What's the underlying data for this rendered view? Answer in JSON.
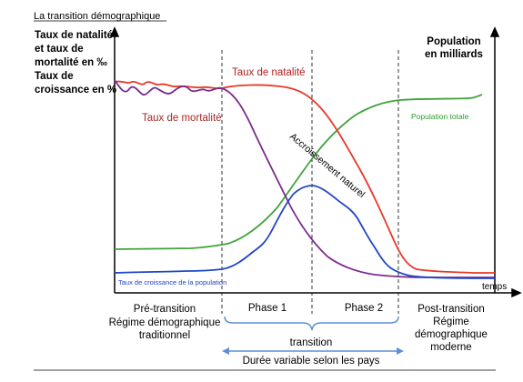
{
  "header": {
    "title": "La transition démographique"
  },
  "axes": {
    "left_label": [
      "Taux de natalité",
      "et taux de",
      "mortalité en ‰",
      "Taux de",
      "croissance en %"
    ],
    "right_label": [
      "Population",
      "en milliards"
    ],
    "x_label": "temps"
  },
  "curves": {
    "birth_rate_label": "Taux de natalité",
    "death_rate_label": "Taux de mortalité",
    "natural_increase_label": "Accroissement naturel",
    "population_label": "Population totale",
    "growth_rate_label": "Taux de croissance de la population"
  },
  "phases": {
    "pre": [
      "Pré-transition",
      "Régime démographique",
      "traditionnel"
    ],
    "phase1": "Phase 1",
    "phase2": "Phase 2",
    "post": [
      "Post-transition",
      "Régime",
      "démographique",
      "moderne"
    ],
    "transition": "transition",
    "duration": "Durée variable selon les pays"
  },
  "colors": {
    "birth": "#e8392a",
    "death": "#7b2d8e",
    "population": "#3fa33a",
    "growth": "#2146c7",
    "birth_label": "#b22222",
    "death_label": "#a52a2a",
    "population_label": "#2e9a2e",
    "growth_label": "#2146c7",
    "arrow": "#5b8fd6"
  }
}
